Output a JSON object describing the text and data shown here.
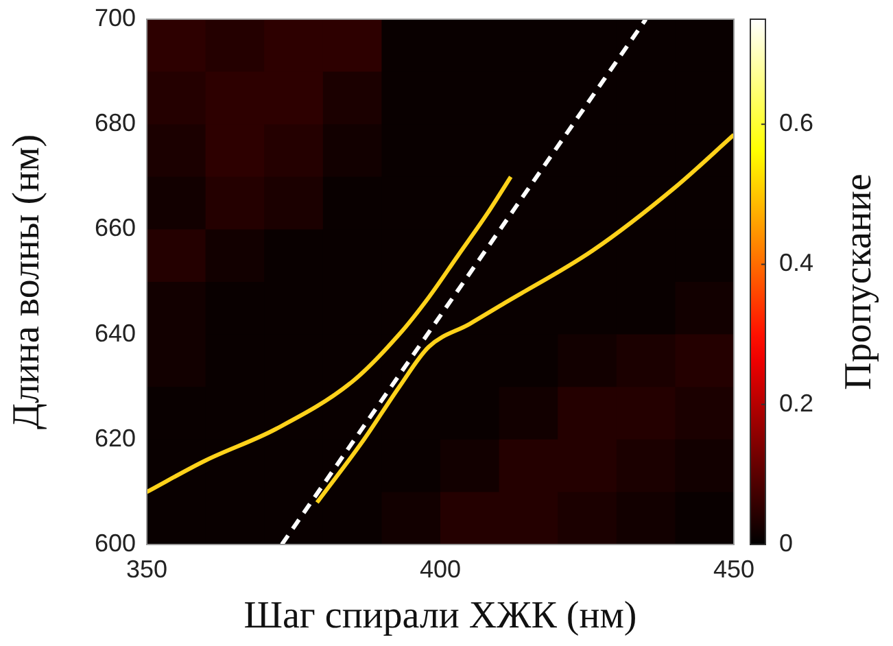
{
  "chart_data": {
    "type": "heatmap",
    "xlabel": "Шаг спирали ХЖК (нм)",
    "ylabel": "Длина волны (нм)",
    "clabel": "Пропускание",
    "x": [
      355,
      365,
      375,
      385,
      395,
      405,
      415,
      425,
      435,
      445
    ],
    "y": [
      695,
      685,
      675,
      665,
      655,
      645,
      635,
      625,
      615,
      605
    ],
    "cells": [
      [
        0.05,
        0.04,
        0.05,
        0.05,
        0.01,
        0.01,
        0.01,
        0.01,
        0.01,
        0.01
      ],
      [
        0.04,
        0.05,
        0.05,
        0.03,
        0.01,
        0.01,
        0.01,
        0.01,
        0.01,
        0.01
      ],
      [
        0.03,
        0.05,
        0.04,
        0.02,
        0.01,
        0.01,
        0.01,
        0.01,
        0.01,
        0.01
      ],
      [
        0.02,
        0.04,
        0.03,
        0.01,
        0.01,
        0.01,
        0.01,
        0.01,
        0.01,
        0.01
      ],
      [
        0.04,
        0.02,
        0.01,
        0.01,
        0.01,
        0.01,
        0.01,
        0.01,
        0.01,
        0.01
      ],
      [
        0.02,
        0.01,
        0.01,
        0.01,
        0.01,
        0.01,
        0.01,
        0.01,
        0.01,
        0.02
      ],
      [
        0.02,
        0.01,
        0.01,
        0.01,
        0.01,
        0.01,
        0.01,
        0.02,
        0.03,
        0.04
      ],
      [
        0.01,
        0.01,
        0.01,
        0.01,
        0.01,
        0.01,
        0.02,
        0.04,
        0.04,
        0.03
      ],
      [
        0.01,
        0.01,
        0.01,
        0.01,
        0.01,
        0.02,
        0.04,
        0.04,
        0.03,
        0.02
      ],
      [
        0.01,
        0.01,
        0.01,
        0.01,
        0.02,
        0.04,
        0.04,
        0.03,
        0.02,
        0.01
      ]
    ],
    "clim": [
      0,
      0.75
    ],
    "cticks": [
      0,
      0.2,
      0.4,
      0.6
    ],
    "xlim": [
      350,
      450
    ],
    "xticks": [
      350,
      400,
      450
    ],
    "ylim": [
      600,
      700
    ],
    "yticks": [
      600,
      620,
      640,
      660,
      680,
      700
    ],
    "grid": false,
    "series": [
      {
        "type": "line",
        "color": "#ffd21a",
        "x": [
          350,
          360,
          372,
          385,
          393,
          398,
          403,
          408,
          412
        ],
        "values": [
          610,
          616,
          622,
          631,
          640,
          647,
          655,
          663,
          670
        ]
      },
      {
        "type": "line",
        "color": "#ffd21a",
        "x": [
          379,
          387,
          393,
          398,
          405,
          411,
          426,
          440,
          450
        ],
        "values": [
          608,
          620,
          630,
          637.6,
          642,
          646,
          656,
          668,
          678
        ]
      },
      {
        "type": "line",
        "color": "#ffffff",
        "line_style": "dashed",
        "x": [
          373,
          435
        ],
        "values": [
          600,
          700
        ]
      }
    ]
  }
}
